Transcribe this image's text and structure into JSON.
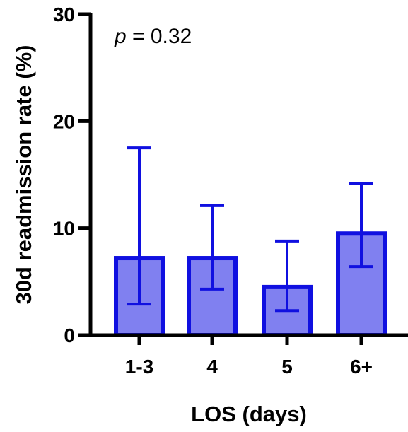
{
  "chart_data": {
    "type": "bar",
    "categories": [
      "1-3",
      "4",
      "5",
      "6+"
    ],
    "values": [
      7.2,
      7.2,
      4.5,
      9.5
    ],
    "error_low": [
      2.9,
      4.3,
      2.3,
      6.4
    ],
    "error_high": [
      17.5,
      12.1,
      8.8,
      14.2
    ],
    "xlabel": "LOS (days)",
    "ylabel": "30d readmission rate (%)",
    "ylim": [
      0,
      30
    ],
    "yticks": [
      0,
      10,
      20,
      30
    ],
    "annotation": {
      "symbol": "p",
      "text": " = 0.32"
    },
    "grid": false,
    "colors": {
      "bar_fill": "#8080f0",
      "bar_stroke": "#1010e0",
      "axis": "#000000"
    }
  }
}
